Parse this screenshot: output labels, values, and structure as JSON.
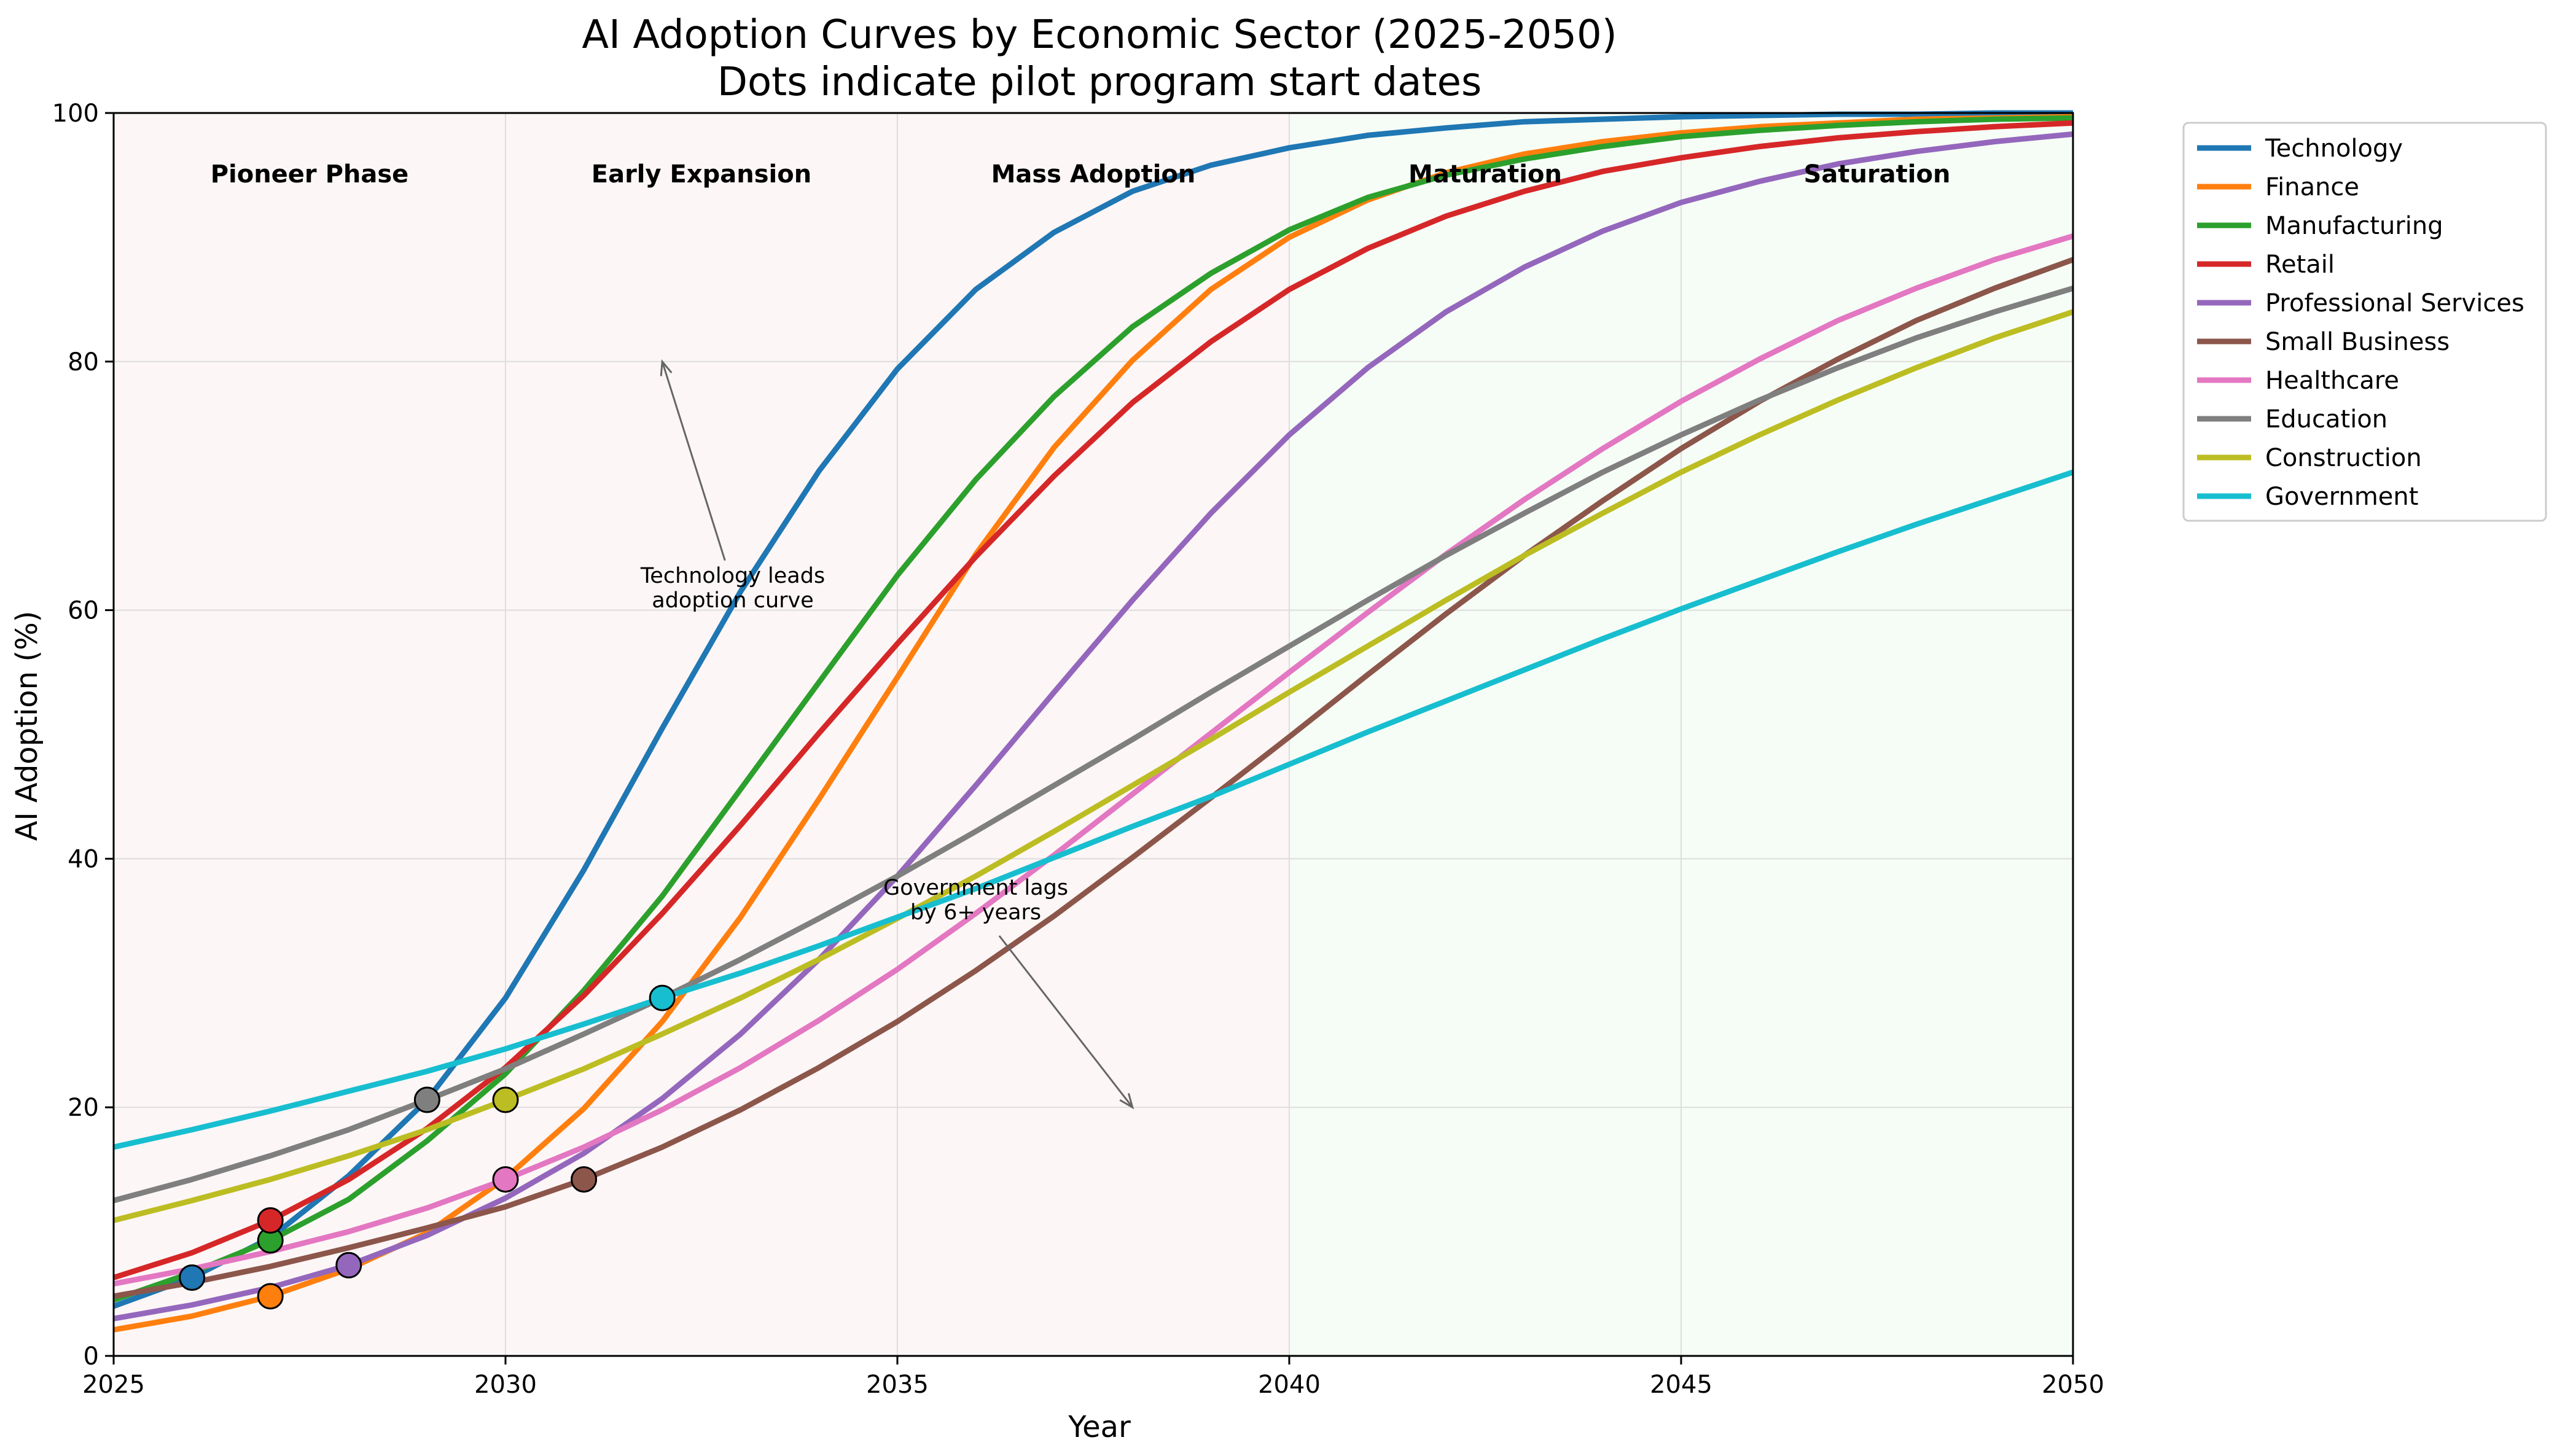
{
  "chart_data": {
    "type": "line",
    "title": "AI Adoption Curves by Economic Sector (2025-2050)",
    "subtitle": "Dots indicate pilot program start dates",
    "xlabel": "Year",
    "ylabel": "AI Adoption (%)",
    "xlim": [
      2025,
      2050
    ],
    "ylim": [
      0,
      100
    ],
    "xticks": [
      2025,
      2030,
      2035,
      2040,
      2045,
      2050
    ],
    "yticks": [
      0,
      20,
      40,
      60,
      80,
      100
    ],
    "grid": true,
    "legend_position": "outside-top-right",
    "x": [
      2025,
      2026,
      2027,
      2028,
      2029,
      2030,
      2031,
      2032,
      2033,
      2034,
      2035,
      2036,
      2037,
      2038,
      2039,
      2040,
      2041,
      2042,
      2043,
      2044,
      2045,
      2046,
      2047,
      2048,
      2049,
      2050
    ],
    "series": [
      {
        "name": "Technology",
        "color": "#1f77b4",
        "pilot_year": 2026,
        "pilot_value": 6.3,
        "values": [
          4.0,
          6.3,
          9.5,
          14.5,
          20.6,
          28.8,
          39.1,
          50.5,
          61.5,
          71.2,
          79.4,
          85.8,
          90.4,
          93.7,
          95.8,
          97.2,
          98.2,
          98.8,
          99.3,
          99.5,
          99.7,
          99.8,
          99.9,
          99.9,
          100.0,
          100.0
        ]
      },
      {
        "name": "Finance",
        "color": "#ff7f0e",
        "pilot_year": 2027,
        "pilot_value": 4.8,
        "values": [
          2.1,
          3.2,
          4.8,
          7.0,
          9.9,
          14.3,
          19.9,
          26.9,
          35.3,
          44.8,
          54.6,
          64.5,
          73.1,
          80.1,
          85.8,
          90.0,
          93.0,
          95.2,
          96.7,
          97.7,
          98.4,
          98.9,
          99.2,
          99.5,
          99.6,
          99.7
        ]
      },
      {
        "name": "Manufacturing",
        "color": "#2ca02c",
        "pilot_year": 2027,
        "pilot_value": 9.3,
        "values": [
          4.5,
          6.7,
          9.3,
          12.6,
          17.3,
          22.7,
          29.4,
          37.0,
          45.6,
          54.2,
          62.8,
          70.5,
          77.2,
          82.8,
          87.1,
          90.6,
          93.2,
          95.0,
          96.3,
          97.3,
          98.1,
          98.6,
          99.0,
          99.3,
          99.5,
          99.6
        ]
      },
      {
        "name": "Retail",
        "color": "#d62728",
        "pilot_year": 2027,
        "pilot_value": 10.9,
        "values": [
          6.3,
          8.3,
          10.9,
          14.2,
          18.3,
          23.2,
          29.0,
          35.6,
          42.7,
          50.1,
          57.3,
          64.3,
          70.8,
          76.7,
          81.6,
          85.8,
          89.1,
          91.7,
          93.7,
          95.3,
          96.4,
          97.3,
          98.0,
          98.5,
          98.9,
          99.2
        ]
      },
      {
        "name": "Professional Services",
        "color": "#9467bd",
        "pilot_year": 2028,
        "pilot_value": 7.3,
        "values": [
          3.0,
          4.1,
          5.5,
          7.3,
          9.7,
          12.7,
          16.3,
          20.7,
          25.9,
          31.9,
          38.6,
          45.9,
          53.4,
          60.8,
          67.8,
          74.1,
          79.5,
          84.0,
          87.6,
          90.5,
          92.8,
          94.5,
          95.9,
          96.9,
          97.7,
          98.3
        ]
      },
      {
        "name": "Small Business",
        "color": "#8c564b",
        "pilot_year": 2031,
        "pilot_value": 14.2,
        "values": [
          4.8,
          5.9,
          7.2,
          8.7,
          10.3,
          12.0,
          14.2,
          16.8,
          19.8,
          23.2,
          26.9,
          31.0,
          35.4,
          40.1,
          44.9,
          49.8,
          54.8,
          59.7,
          64.4,
          68.8,
          73.0,
          76.8,
          80.2,
          83.3,
          85.9,
          88.2
        ]
      },
      {
        "name": "Healthcare",
        "color": "#e377c2",
        "pilot_year": 2030,
        "pilot_value": 14.2,
        "values": [
          5.8,
          7.0,
          8.4,
          10.0,
          11.9,
          14.2,
          16.8,
          19.8,
          23.2,
          27.0,
          31.1,
          35.6,
          40.3,
          45.2,
          50.1,
          55.0,
          59.8,
          64.5,
          68.9,
          73.0,
          76.8,
          80.2,
          83.3,
          85.9,
          88.2,
          90.1
        ]
      },
      {
        "name": "Education",
        "color": "#7f7f7f",
        "pilot_year": 2029,
        "pilot_value": 20.6,
        "values": [
          12.5,
          14.2,
          16.1,
          18.2,
          20.6,
          23.1,
          25.9,
          28.8,
          31.9,
          35.2,
          38.6,
          42.2,
          45.9,
          49.6,
          53.4,
          57.1,
          60.8,
          64.4,
          67.8,
          71.1,
          74.1,
          76.9,
          79.5,
          81.9,
          84.0,
          85.9
        ]
      },
      {
        "name": "Construction",
        "color": "#bcbd22",
        "pilot_year": 2030,
        "pilot_value": 20.6,
        "values": [
          10.9,
          12.5,
          14.2,
          16.1,
          18.2,
          20.6,
          23.1,
          25.9,
          28.8,
          31.9,
          35.2,
          38.6,
          42.2,
          45.9,
          49.6,
          53.4,
          57.1,
          60.8,
          64.4,
          67.8,
          71.1,
          74.1,
          76.9,
          79.5,
          81.9,
          84.0
        ]
      },
      {
        "name": "Government",
        "color": "#17becf",
        "pilot_year": 2032,
        "pilot_value": 28.8,
        "values": [
          16.8,
          18.2,
          19.7,
          21.3,
          22.9,
          24.7,
          26.7,
          28.8,
          30.8,
          33.0,
          35.3,
          37.6,
          40.1,
          42.6,
          45.0,
          47.6,
          50.2,
          52.7,
          55.2,
          57.7,
          60.1,
          62.4,
          64.7,
          66.9,
          69.0,
          71.1
        ]
      }
    ],
    "phases": [
      {
        "label": "Pioneer Phase",
        "start": 2025,
        "end": 2030,
        "color": "#fdf6f6"
      },
      {
        "label": "Early Expansion",
        "start": 2030,
        "end": 2035,
        "color": "#fdf6f6"
      },
      {
        "label": "Mass Adoption",
        "start": 2035,
        "end": 2040,
        "color": "#fdf6f6"
      },
      {
        "label": "Maturation",
        "start": 2040,
        "end": 2045,
        "color": "#f6fdf6"
      },
      {
        "label": "Saturation",
        "start": 2045,
        "end": 2050,
        "color": "#f6fdf6"
      }
    ],
    "annotations": [
      {
        "lines": [
          "Technology leads",
          "adoption curve"
        ],
        "text_x": 2032.9,
        "text_y": 61.8,
        "arrow_from_x": 2032.8,
        "arrow_from_y": 64.0,
        "arrow_to_x": 2032.0,
        "arrow_to_y": 80.0
      },
      {
        "lines": [
          "Government lags",
          "by 6+ years"
        ],
        "text_x": 2036.0,
        "text_y": 36.7,
        "arrow_from_x": 2036.3,
        "arrow_from_y": 33.8,
        "arrow_to_x": 2038.0,
        "arrow_to_y": 20.0
      }
    ]
  }
}
